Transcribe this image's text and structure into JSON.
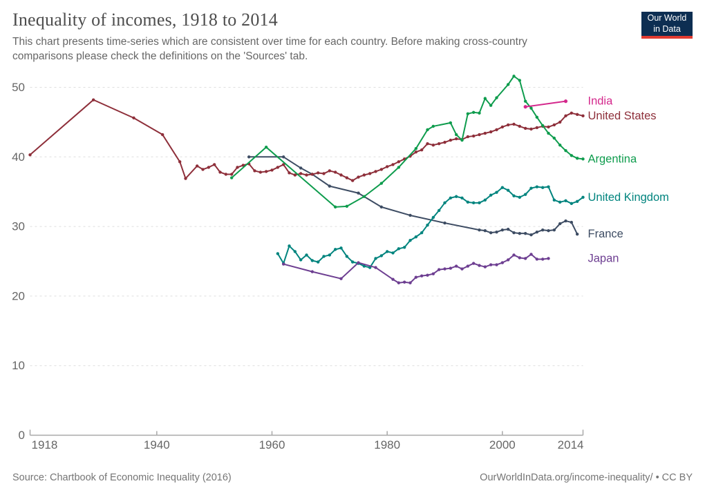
{
  "header": {
    "title": "Inequality of incomes, 1918 to 2014",
    "subtitle_lines": [
      "This chart presents time-series which are consistent over time for each country. Before making cross-country",
      "comparisons please check the definitions on the 'Sources' tab."
    ],
    "logo": {
      "line1": "Our World",
      "line2": "in Data",
      "bg_color": "#0d2e52",
      "bar_color": "#e23b31"
    }
  },
  "footer": {
    "source": "Source: Chartbook of Economic Inequality (2016)",
    "attribution": "OurWorldInData.org/income-inequality/ • CC BY"
  },
  "chart_data": {
    "type": "line",
    "title": "Inequality of incomes, 1918 to 2014",
    "xlabel": "",
    "ylabel": "",
    "xlim": [
      1918,
      2014
    ],
    "ylim": [
      0,
      52
    ],
    "x_ticks": [
      1918,
      1940,
      1960,
      1980,
      2000,
      2014
    ],
    "y_ticks": [
      0,
      10,
      20,
      30,
      40,
      50
    ],
    "grid": "horizontal-dashed",
    "legend_position": "right-of-line-ends",
    "colors": {
      "grid": "#dedede",
      "axis": "#a8a8a8",
      "tick_text": "#666666"
    },
    "series": [
      {
        "name": "France",
        "color": "#3d4c63",
        "points": [
          [
            1956,
            40.0
          ],
          [
            1962,
            40.0
          ],
          [
            1965,
            38.4
          ],
          [
            1967,
            37.5
          ],
          [
            1970,
            35.8
          ],
          [
            1975,
            34.8
          ],
          [
            1979,
            32.8
          ],
          [
            1984,
            31.6
          ],
          [
            1990,
            30.5
          ],
          [
            1996,
            29.5
          ],
          [
            1997,
            29.4
          ],
          [
            1998,
            29.1
          ],
          [
            1999,
            29.2
          ],
          [
            2000,
            29.5
          ],
          [
            2001,
            29.6
          ],
          [
            2002,
            29.1
          ],
          [
            2003,
            29.0
          ],
          [
            2004,
            29.0
          ],
          [
            2005,
            28.8
          ],
          [
            2006,
            29.2
          ],
          [
            2007,
            29.5
          ],
          [
            2008,
            29.4
          ],
          [
            2009,
            29.5
          ],
          [
            2010,
            30.4
          ],
          [
            2011,
            30.8
          ],
          [
            2012,
            30.6
          ],
          [
            2013,
            28.9
          ]
        ]
      },
      {
        "name": "United States",
        "color": "#8e2f3a",
        "points": [
          [
            1918,
            40.3
          ],
          [
            1929,
            48.2
          ],
          [
            1936,
            45.6
          ],
          [
            1941,
            43.2
          ],
          [
            1944,
            39.3
          ],
          [
            1945,
            36.9
          ],
          [
            1947,
            38.7
          ],
          [
            1948,
            38.2
          ],
          [
            1949,
            38.5
          ],
          [
            1950,
            38.9
          ],
          [
            1951,
            37.8
          ],
          [
            1952,
            37.5
          ],
          [
            1953,
            37.5
          ],
          [
            1954,
            38.5
          ],
          [
            1955,
            38.8
          ],
          [
            1956,
            39.0
          ],
          [
            1957,
            38.0
          ],
          [
            1958,
            37.8
          ],
          [
            1959,
            37.9
          ],
          [
            1960,
            38.1
          ],
          [
            1961,
            38.5
          ],
          [
            1962,
            38.9
          ],
          [
            1963,
            37.7
          ],
          [
            1964,
            37.4
          ],
          [
            1965,
            37.6
          ],
          [
            1966,
            37.4
          ],
          [
            1967,
            37.5
          ],
          [
            1968,
            37.7
          ],
          [
            1969,
            37.6
          ],
          [
            1970,
            38.0
          ],
          [
            1971,
            37.8
          ],
          [
            1972,
            37.4
          ],
          [
            1973,
            37.0
          ],
          [
            1974,
            36.6
          ],
          [
            1975,
            37.1
          ],
          [
            1976,
            37.4
          ],
          [
            1977,
            37.6
          ],
          [
            1978,
            37.9
          ],
          [
            1979,
            38.2
          ],
          [
            1980,
            38.6
          ],
          [
            1981,
            38.9
          ],
          [
            1982,
            39.3
          ],
          [
            1983,
            39.7
          ],
          [
            1984,
            40.1
          ],
          [
            1985,
            40.7
          ],
          [
            1986,
            41.0
          ],
          [
            1987,
            41.9
          ],
          [
            1988,
            41.7
          ],
          [
            1989,
            41.9
          ],
          [
            1990,
            42.1
          ],
          [
            1991,
            42.4
          ],
          [
            1992,
            42.6
          ],
          [
            1993,
            42.5
          ],
          [
            1994,
            42.9
          ],
          [
            1995,
            43.0
          ],
          [
            1996,
            43.2
          ],
          [
            1997,
            43.4
          ],
          [
            1998,
            43.6
          ],
          [
            1999,
            43.9
          ],
          [
            2000,
            44.3
          ],
          [
            2001,
            44.6
          ],
          [
            2002,
            44.7
          ],
          [
            2003,
            44.4
          ],
          [
            2004,
            44.1
          ],
          [
            2005,
            44.0
          ],
          [
            2006,
            44.2
          ],
          [
            2007,
            44.4
          ],
          [
            2008,
            44.3
          ],
          [
            2009,
            44.6
          ],
          [
            2010,
            45.0
          ],
          [
            2011,
            45.9
          ],
          [
            2012,
            46.3
          ],
          [
            2013,
            46.1
          ],
          [
            2014,
            45.9
          ]
        ]
      },
      {
        "name": "Argentina",
        "color": "#0e9c4d",
        "points": [
          [
            1953,
            37.0
          ],
          [
            1959,
            41.4
          ],
          [
            1971,
            32.8
          ],
          [
            1973,
            32.9
          ],
          [
            1976,
            34.3
          ],
          [
            1979,
            36.2
          ],
          [
            1982,
            38.5
          ],
          [
            1985,
            41.2
          ],
          [
            1987,
            43.9
          ],
          [
            1988,
            44.4
          ],
          [
            1991,
            44.9
          ],
          [
            1992,
            43.2
          ],
          [
            1993,
            42.4
          ],
          [
            1994,
            46.2
          ],
          [
            1995,
            46.4
          ],
          [
            1996,
            46.3
          ],
          [
            1997,
            48.4
          ],
          [
            1998,
            47.4
          ],
          [
            1999,
            48.5
          ],
          [
            2001,
            50.4
          ],
          [
            2002,
            51.6
          ],
          [
            2003,
            51.0
          ],
          [
            2004,
            48.0
          ],
          [
            2005,
            47.0
          ],
          [
            2006,
            45.7
          ],
          [
            2007,
            44.5
          ],
          [
            2008,
            43.4
          ],
          [
            2009,
            42.7
          ],
          [
            2010,
            41.7
          ],
          [
            2011,
            40.9
          ],
          [
            2012,
            40.2
          ],
          [
            2013,
            39.8
          ],
          [
            2014,
            39.7
          ]
        ]
      },
      {
        "name": "United Kingdom",
        "color": "#00847e",
        "points": [
          [
            1961,
            26.1
          ],
          [
            1962,
            24.7
          ],
          [
            1963,
            27.2
          ],
          [
            1964,
            26.4
          ],
          [
            1965,
            25.2
          ],
          [
            1966,
            25.9
          ],
          [
            1967,
            25.1
          ],
          [
            1968,
            24.9
          ],
          [
            1969,
            25.7
          ],
          [
            1970,
            25.9
          ],
          [
            1971,
            26.7
          ],
          [
            1972,
            26.9
          ],
          [
            1973,
            25.7
          ],
          [
            1974,
            24.9
          ],
          [
            1975,
            24.7
          ],
          [
            1976,
            24.3
          ],
          [
            1977,
            24.1
          ],
          [
            1978,
            25.4
          ],
          [
            1979,
            25.8
          ],
          [
            1980,
            26.4
          ],
          [
            1981,
            26.2
          ],
          [
            1982,
            26.8
          ],
          [
            1983,
            27.0
          ],
          [
            1984,
            28.0
          ],
          [
            1985,
            28.5
          ],
          [
            1986,
            29.1
          ],
          [
            1987,
            30.2
          ],
          [
            1988,
            31.3
          ],
          [
            1989,
            32.3
          ],
          [
            1990,
            33.4
          ],
          [
            1991,
            34.1
          ],
          [
            1992,
            34.3
          ],
          [
            1993,
            34.1
          ],
          [
            1994,
            33.5
          ],
          [
            1995,
            33.4
          ],
          [
            1996,
            33.4
          ],
          [
            1997,
            33.8
          ],
          [
            1998,
            34.5
          ],
          [
            1999,
            34.9
          ],
          [
            2000,
            35.6
          ],
          [
            2001,
            35.2
          ],
          [
            2002,
            34.4
          ],
          [
            2003,
            34.2
          ],
          [
            2004,
            34.6
          ],
          [
            2005,
            35.5
          ],
          [
            2006,
            35.7
          ],
          [
            2007,
            35.6
          ],
          [
            2008,
            35.7
          ],
          [
            2009,
            33.8
          ],
          [
            2010,
            33.5
          ],
          [
            2011,
            33.7
          ],
          [
            2012,
            33.3
          ],
          [
            2013,
            33.6
          ],
          [
            2014,
            34.2
          ]
        ]
      },
      {
        "name": "Japan",
        "color": "#6d3e91",
        "points": [
          [
            1962,
            24.6
          ],
          [
            1967,
            23.5
          ],
          [
            1972,
            22.5
          ],
          [
            1975,
            24.8
          ],
          [
            1978,
            24.1
          ],
          [
            1981,
            22.4
          ],
          [
            1982,
            21.9
          ],
          [
            1983,
            22.0
          ],
          [
            1984,
            21.9
          ],
          [
            1985,
            22.7
          ],
          [
            1986,
            22.9
          ],
          [
            1987,
            23.0
          ],
          [
            1988,
            23.2
          ],
          [
            1989,
            23.8
          ],
          [
            1990,
            23.9
          ],
          [
            1991,
            24.0
          ],
          [
            1992,
            24.3
          ],
          [
            1993,
            23.9
          ],
          [
            1994,
            24.3
          ],
          [
            1995,
            24.7
          ],
          [
            1996,
            24.4
          ],
          [
            1997,
            24.2
          ],
          [
            1998,
            24.5
          ],
          [
            1999,
            24.5
          ],
          [
            2000,
            24.8
          ],
          [
            2001,
            25.2
          ],
          [
            2002,
            25.9
          ],
          [
            2003,
            25.5
          ],
          [
            2004,
            25.4
          ],
          [
            2005,
            26.0
          ],
          [
            2006,
            25.3
          ],
          [
            2007,
            25.3
          ],
          [
            2008,
            25.4
          ]
        ]
      },
      {
        "name": "India",
        "color": "#d4288c",
        "points": [
          [
            2004,
            47.2
          ],
          [
            2011,
            48.0
          ]
        ]
      }
    ]
  }
}
